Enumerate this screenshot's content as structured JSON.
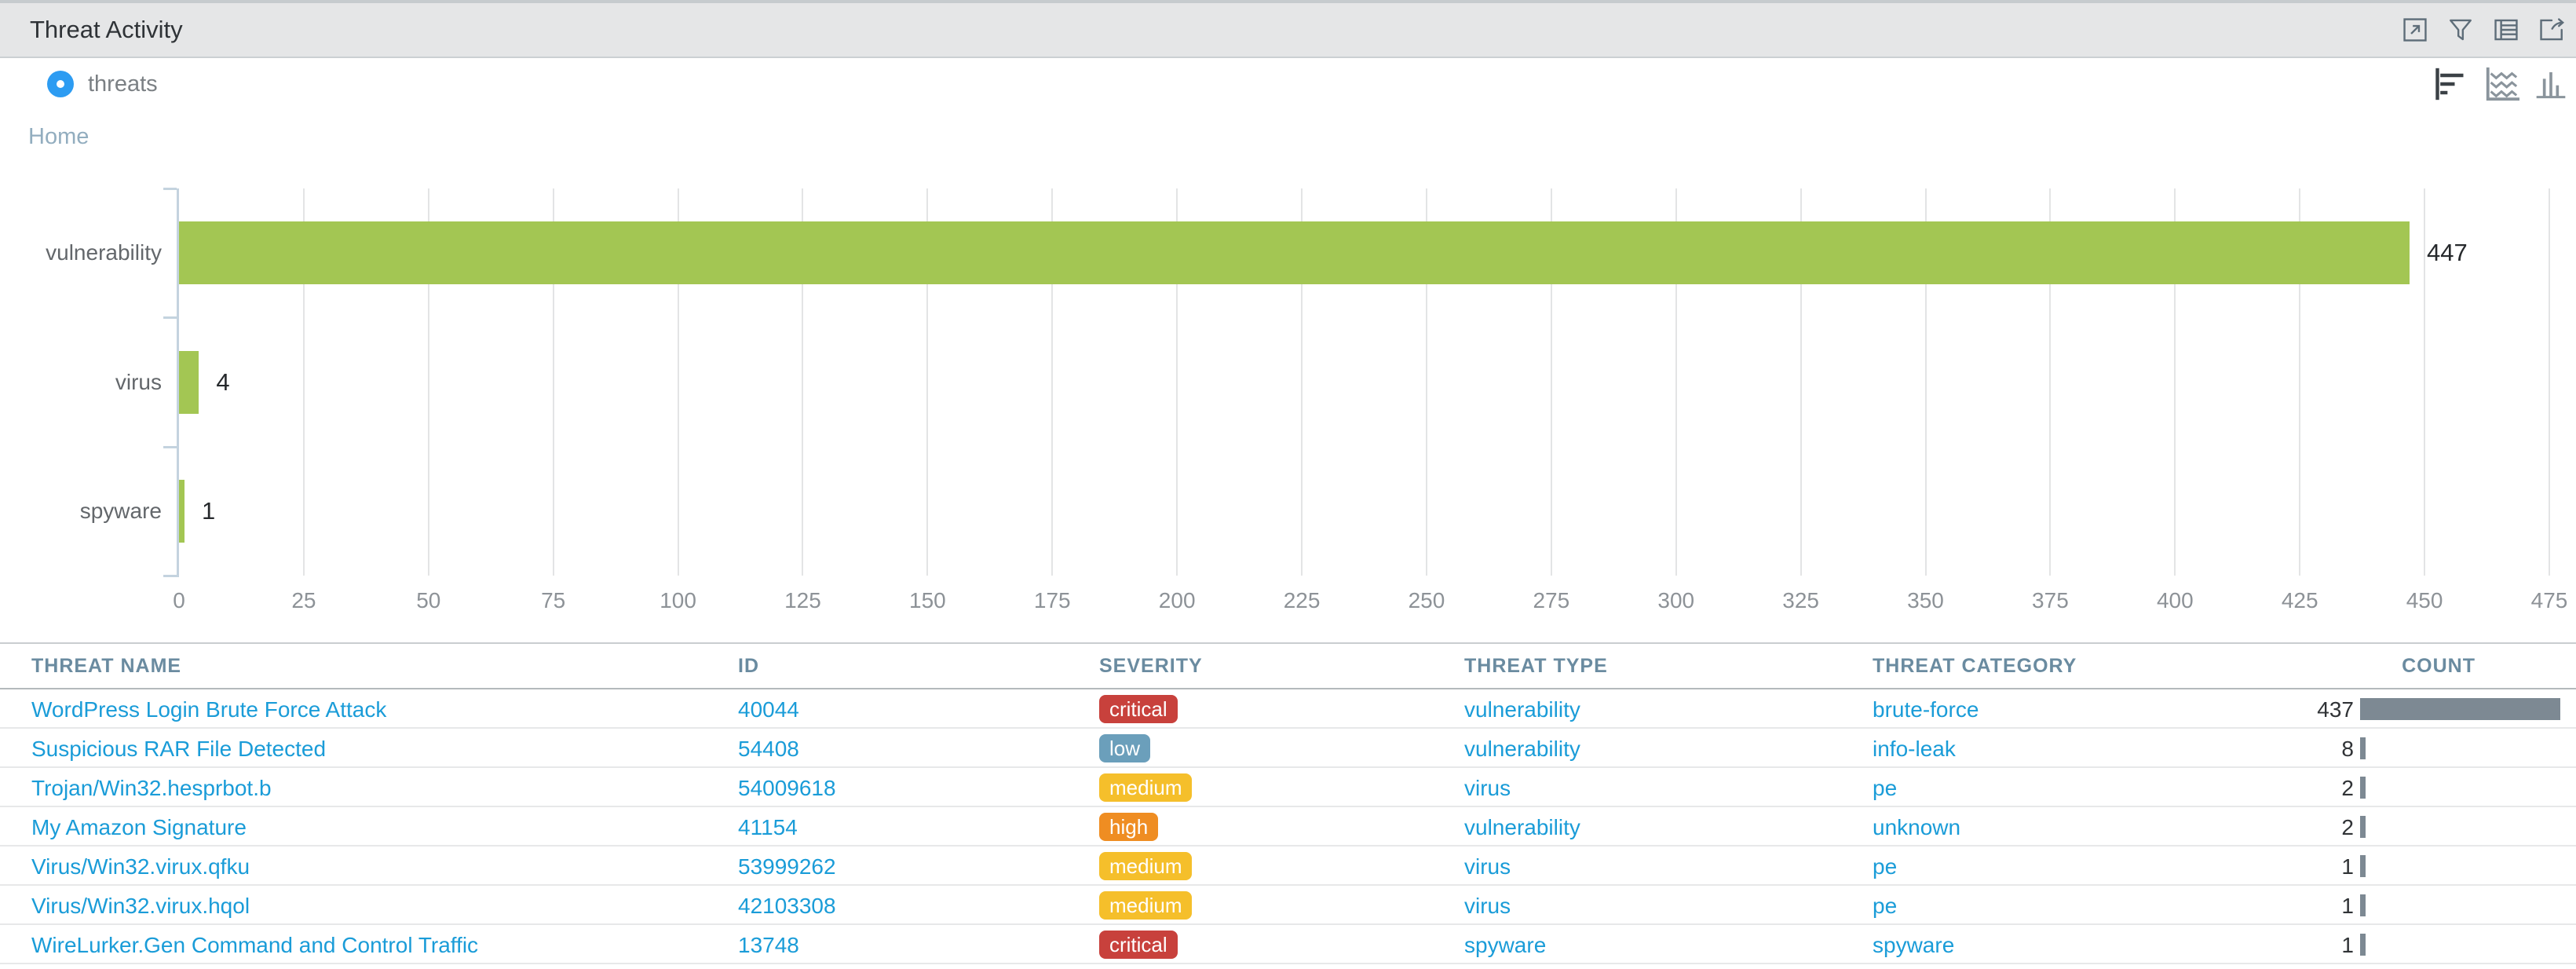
{
  "window": {
    "title": "Threat Activity",
    "header_icons": [
      {
        "name": "expand-icon"
      },
      {
        "name": "filter-icon"
      },
      {
        "name": "table-view-icon"
      },
      {
        "name": "export-icon"
      }
    ]
  },
  "toolbar": {
    "legend_label": "threats",
    "chart_type_icons": [
      {
        "name": "horizontal-bar-chart-icon",
        "active": true
      },
      {
        "name": "area-chart-icon",
        "active": false
      },
      {
        "name": "column-chart-icon",
        "active": false
      }
    ]
  },
  "breadcrumb": {
    "home_label": "Home"
  },
  "chart_data": {
    "type": "bar",
    "orientation": "horizontal",
    "title": "",
    "xlabel": "",
    "ylabel": "",
    "categories": [
      "vulnerability",
      "virus",
      "spyware"
    ],
    "values": [
      447,
      4,
      1
    ],
    "data_labels": [
      "447",
      "4",
      "1"
    ],
    "xlim": [
      0,
      475
    ],
    "x_ticks": [
      0,
      25,
      50,
      75,
      100,
      125,
      150,
      175,
      200,
      225,
      250,
      275,
      300,
      325,
      350,
      375,
      400,
      425,
      450,
      475
    ],
    "grid": true,
    "legend_position": "none",
    "bar_color": "#a3c653"
  },
  "table": {
    "columns": [
      "THREAT NAME",
      "ID",
      "SEVERITY",
      "THREAT TYPE",
      "THREAT CATEGORY",
      "COUNT"
    ],
    "max_count": 437,
    "rows": [
      {
        "threat_name": "WordPress Login Brute Force Attack",
        "id": "40044",
        "severity": "critical",
        "threat_type": "vulnerability",
        "threat_category": "brute-force",
        "count": 437
      },
      {
        "threat_name": "Suspicious RAR File Detected",
        "id": "54408",
        "severity": "low",
        "threat_type": "vulnerability",
        "threat_category": "info-leak",
        "count": 8
      },
      {
        "threat_name": "Trojan/Win32.hesprbot.b",
        "id": "54009618",
        "severity": "medium",
        "threat_type": "virus",
        "threat_category": "pe",
        "count": 2
      },
      {
        "threat_name": "My Amazon Signature",
        "id": "41154",
        "severity": "high",
        "threat_type": "vulnerability",
        "threat_category": "unknown",
        "count": 2
      },
      {
        "threat_name": "Virus/Win32.virux.qfku",
        "id": "53999262",
        "severity": "medium",
        "threat_type": "virus",
        "threat_category": "pe",
        "count": 1
      },
      {
        "threat_name": "Virus/Win32.virux.hqol",
        "id": "42103308",
        "severity": "medium",
        "threat_type": "virus",
        "threat_category": "pe",
        "count": 1
      },
      {
        "threat_name": "WireLurker.Gen Command and Control Traffic",
        "id": "13748",
        "severity": "critical",
        "threat_type": "spyware",
        "threat_category": "spyware",
        "count": 1
      }
    ]
  },
  "colors": {
    "bar_green": "#a3c653",
    "link_blue": "#1a9cd8",
    "count_bar_gray": "#7d8993",
    "severity": {
      "critical": "#c8413c",
      "high": "#ef8d22",
      "medium": "#f5bf2b",
      "low": "#6b9fbb"
    }
  }
}
